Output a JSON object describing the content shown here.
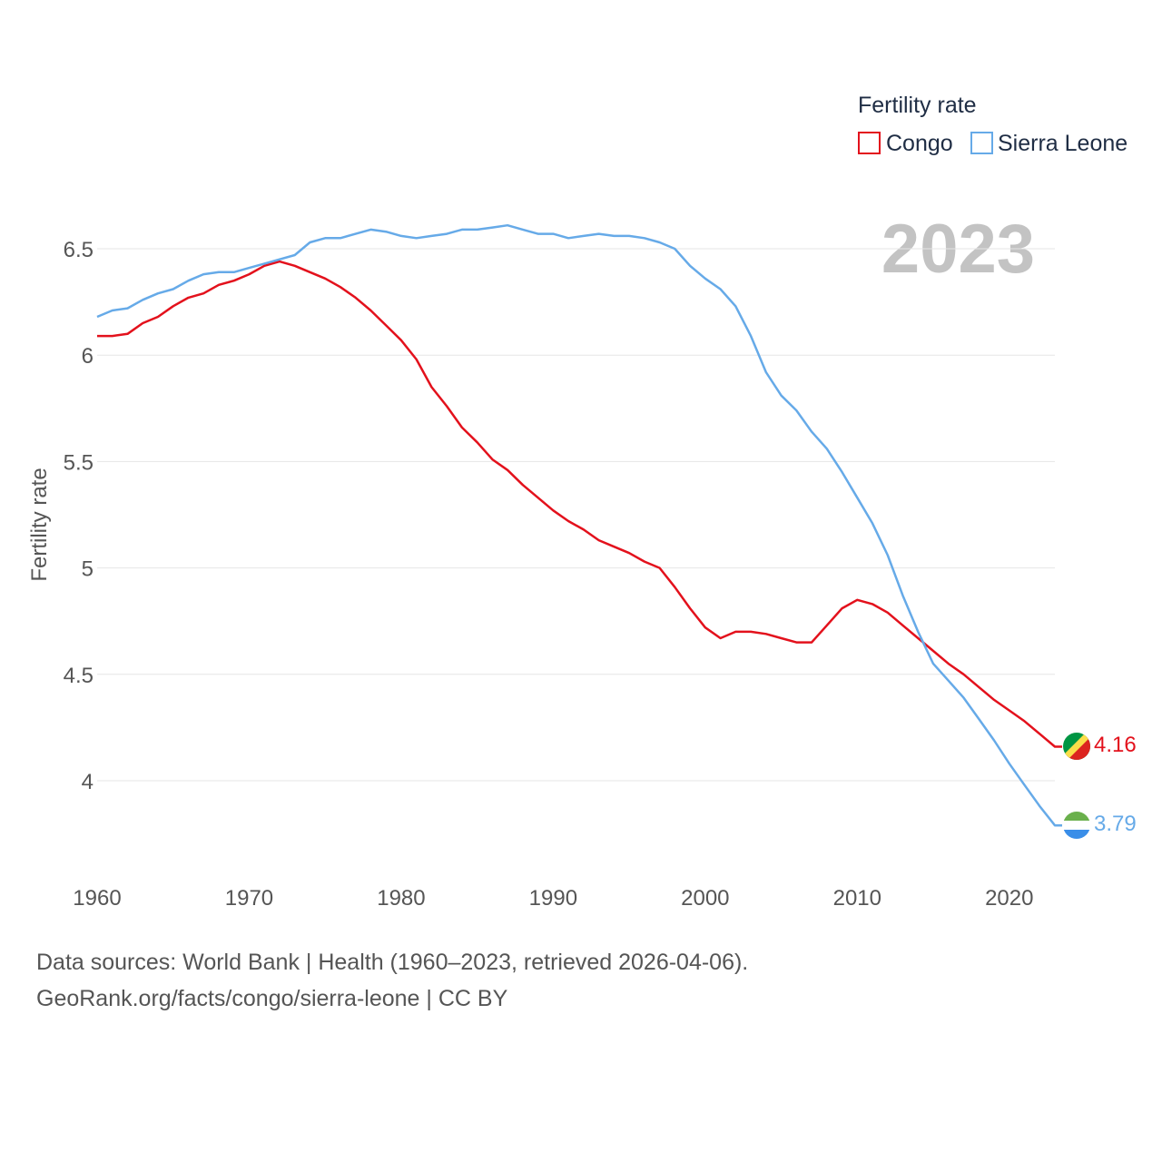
{
  "chart_data": {
    "type": "line",
    "legend_title": "Fertility rate",
    "ylabel": "Fertility rate",
    "year_label": "2023",
    "xlim": [
      1960,
      2023
    ],
    "ylim": [
      3.6,
      6.8
    ],
    "x_ticks": [
      "1960",
      "1970",
      "1980",
      "1990",
      "2000",
      "2010",
      "2020"
    ],
    "y_ticks": [
      "4",
      "4.5",
      "5",
      "5.5",
      "6",
      "6.5"
    ],
    "x": [
      1960,
      1961,
      1962,
      1963,
      1964,
      1965,
      1966,
      1967,
      1968,
      1969,
      1970,
      1971,
      1972,
      1973,
      1974,
      1975,
      1976,
      1977,
      1978,
      1979,
      1980,
      1981,
      1982,
      1983,
      1984,
      1985,
      1986,
      1987,
      1988,
      1989,
      1990,
      1991,
      1992,
      1993,
      1994,
      1995,
      1996,
      1997,
      1998,
      1999,
      2000,
      2001,
      2002,
      2003,
      2004,
      2005,
      2006,
      2007,
      2008,
      2009,
      2010,
      2011,
      2012,
      2013,
      2014,
      2015,
      2016,
      2017,
      2018,
      2019,
      2020,
      2021,
      2022,
      2023
    ],
    "series": [
      {
        "name": "Congo",
        "color": "#e3111c",
        "end_value": "4.16",
        "values": [
          6.09,
          6.09,
          6.1,
          6.15,
          6.18,
          6.23,
          6.27,
          6.29,
          6.33,
          6.35,
          6.38,
          6.42,
          6.44,
          6.42,
          6.39,
          6.36,
          6.32,
          6.27,
          6.21,
          6.14,
          6.07,
          5.98,
          5.85,
          5.76,
          5.66,
          5.59,
          5.51,
          5.46,
          5.39,
          5.33,
          5.27,
          5.22,
          5.18,
          5.13,
          5.1,
          5.07,
          5.03,
          5.0,
          4.91,
          4.81,
          4.72,
          4.67,
          4.7,
          4.7,
          4.69,
          4.67,
          4.65,
          4.65,
          4.73,
          4.81,
          4.85,
          4.83,
          4.79,
          4.73,
          4.67,
          4.61,
          4.55,
          4.5,
          4.44,
          4.38,
          4.33,
          4.28,
          4.22,
          4.16
        ]
      },
      {
        "name": "Sierra Leone",
        "color": "#66aae8",
        "end_value": "3.79",
        "values": [
          6.18,
          6.21,
          6.22,
          6.26,
          6.29,
          6.31,
          6.35,
          6.38,
          6.39,
          6.39,
          6.41,
          6.43,
          6.45,
          6.47,
          6.53,
          6.55,
          6.55,
          6.57,
          6.59,
          6.58,
          6.56,
          6.55,
          6.56,
          6.57,
          6.59,
          6.59,
          6.6,
          6.61,
          6.59,
          6.57,
          6.57,
          6.55,
          6.56,
          6.57,
          6.56,
          6.56,
          6.55,
          6.53,
          6.5,
          6.42,
          6.36,
          6.31,
          6.23,
          6.09,
          5.92,
          5.81,
          5.74,
          5.64,
          5.56,
          5.45,
          5.33,
          5.21,
          5.06,
          4.87,
          4.7,
          4.55,
          4.47,
          4.39,
          4.29,
          4.19,
          4.08,
          3.98,
          3.88,
          3.79
        ]
      }
    ]
  },
  "footer": {
    "line1": "Data sources: World Bank | Health (1960–2023, retrieved 2026-04-06).",
    "line2": "GeoRank.org/facts/congo/sierra-leone | CC BY"
  },
  "icons": {
    "congo": "congo-flag-icon",
    "sierra_leone": "sierra-leone-flag-icon"
  }
}
